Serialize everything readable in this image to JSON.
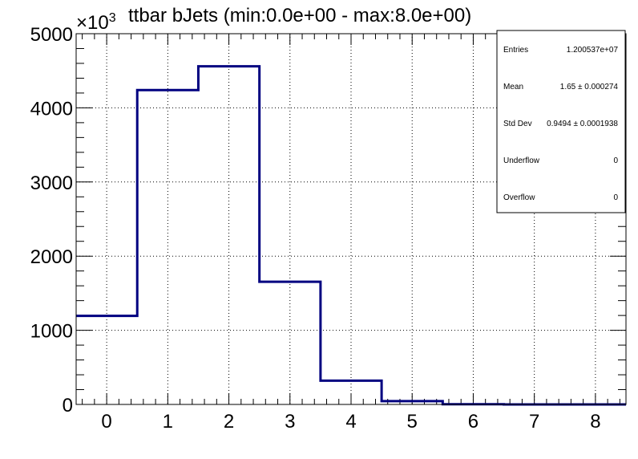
{
  "chart_data": {
    "type": "histogram",
    "title": "ttbar bJets (min:0.0e+00 - max:8.0e+00)",
    "y_multiplier": "×10",
    "y_multiplier_exp": "3",
    "x_ticks": [
      "0",
      "1",
      "2",
      "3",
      "4",
      "5",
      "6",
      "7",
      "8"
    ],
    "y_ticks": [
      "0",
      "1000",
      "2000",
      "3000",
      "4000",
      "5000"
    ],
    "xlim": [
      -0.5,
      8.5
    ],
    "ylim": [
      0,
      5000
    ],
    "bins": [
      {
        "low": -0.5,
        "high": 0.5,
        "value": 1195
      },
      {
        "low": 0.5,
        "high": 1.5,
        "value": 4240
      },
      {
        "low": 1.5,
        "high": 2.5,
        "value": 4560
      },
      {
        "low": 2.5,
        "high": 3.5,
        "value": 1655
      },
      {
        "low": 3.5,
        "high": 4.5,
        "value": 320
      },
      {
        "low": 4.5,
        "high": 5.5,
        "value": 45
      },
      {
        "low": 5.5,
        "high": 6.5,
        "value": 3
      },
      {
        "low": 6.5,
        "high": 7.5,
        "value": 0
      },
      {
        "low": 7.5,
        "high": 8.5,
        "value": 0
      }
    ],
    "line_color": "#000080",
    "grid": true
  },
  "stats": {
    "rows": [
      {
        "label": "Entries",
        "value": "1.200537e+07"
      },
      {
        "label": "Mean",
        "value": "1.65 ± 0.000274"
      },
      {
        "label": "Std Dev",
        "value": "0.9494 ± 0.0001938"
      },
      {
        "label": "Underflow",
        "value": "0"
      },
      {
        "label": "Overflow",
        "value": "0"
      }
    ]
  }
}
